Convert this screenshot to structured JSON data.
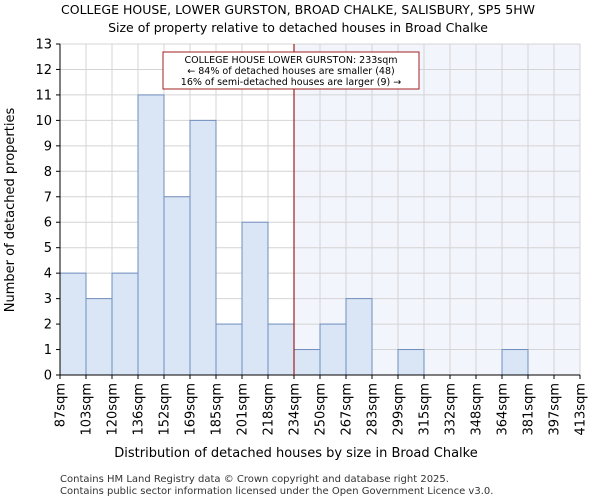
{
  "chart_data": {
    "type": "bar",
    "title": "COLLEGE HOUSE, LOWER GURSTON, BROAD CHALKE, SALISBURY, SP5 5HW",
    "subtitle": "Size of property relative to detached houses in Broad Chalke",
    "xlabel": "Distribution of detached houses by size in Broad Chalke",
    "ylabel": "Number of detached properties",
    "bin_edges": [
      "87sqm",
      "103sqm",
      "120sqm",
      "136sqm",
      "152sqm",
      "169sqm",
      "185sqm",
      "201sqm",
      "218sqm",
      "234sqm",
      "250sqm",
      "267sqm",
      "283sqm",
      "299sqm",
      "315sqm",
      "332sqm",
      "348sqm",
      "364sqm",
      "381sqm",
      "397sqm",
      "413sqm"
    ],
    "values": [
      4,
      3,
      4,
      11,
      7,
      10,
      2,
      6,
      2,
      1,
      2,
      3,
      0,
      1,
      0,
      0,
      0,
      1,
      0,
      0
    ],
    "ylim": [
      0,
      13
    ],
    "yticks": [
      0,
      1,
      2,
      3,
      4,
      5,
      6,
      7,
      8,
      9,
      10,
      11,
      12,
      13
    ],
    "grid": true,
    "highlight_bin_index": 9,
    "colors": {
      "bar_fill": "#dae6f5",
      "bar_stroke": "#6f8fbf",
      "marker_line": "#a02020",
      "highlight_bg": "#f3f5fd",
      "grid": "#d4d4d4"
    },
    "annotation": {
      "lines": [
        "COLLEGE HOUSE LOWER GURSTON: 233sqm",
        "← 84% of detached houses are smaller (48)",
        "16% of semi-detached houses are larger (9) →"
      ]
    }
  },
  "footer": {
    "line1": "Contains HM Land Registry data © Crown copyright and database right 2025.",
    "line2": "Contains public sector information licensed under the Open Government Licence v3.0."
  }
}
